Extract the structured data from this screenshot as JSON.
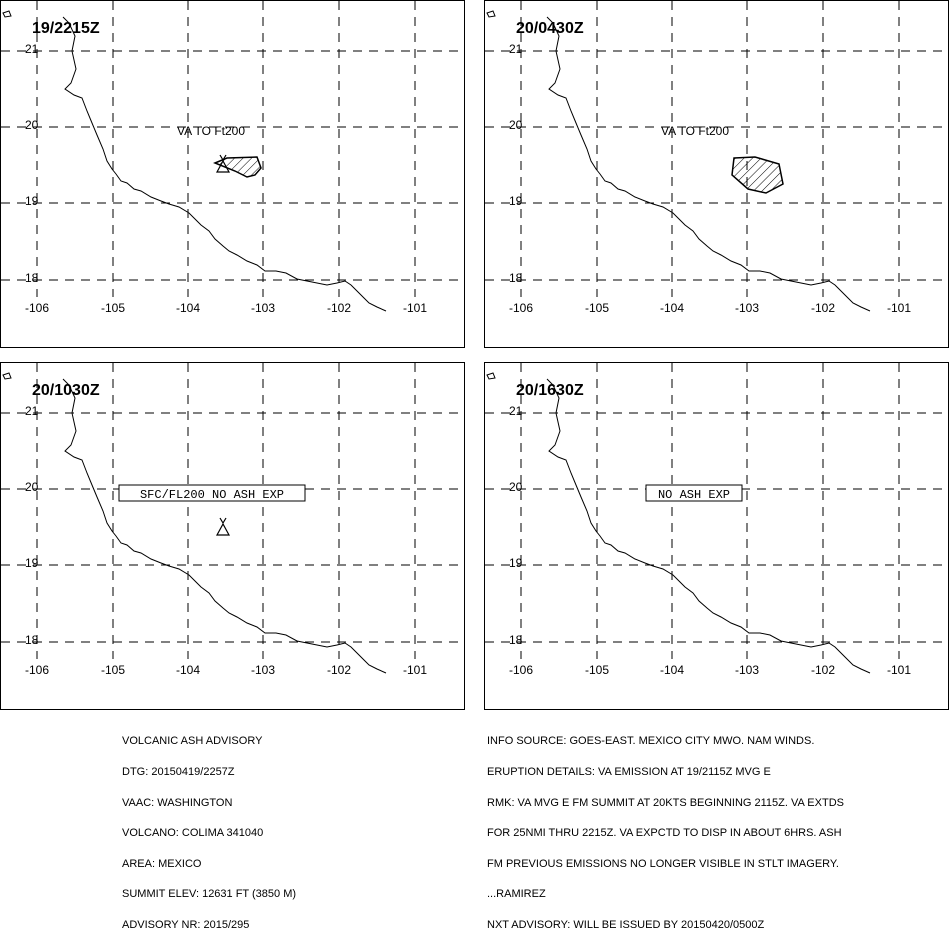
{
  "map": {
    "lon_ticks": [
      "-106",
      "-105",
      "-104",
      "-103",
      "-102",
      "-101"
    ],
    "lat_ticks": [
      "21",
      "20",
      "19",
      "18"
    ]
  },
  "panels": [
    {
      "time": "19/2215Z",
      "label": "VA TO Ft200",
      "label_boxed": false,
      "ash": "small"
    },
    {
      "time": "20/0430Z",
      "label": "VA TO Ft200",
      "label_boxed": false,
      "ash": "large"
    },
    {
      "time": "20/1030Z",
      "label": "SFC/FL200 NO ASH EXP",
      "label_boxed": true,
      "ash": "none"
    },
    {
      "time": "20/1630Z",
      "label": "NO ASH EXP",
      "label_boxed": true,
      "ash": "none"
    }
  ],
  "advisory_left": [
    "VOLCANIC ASH ADVISORY",
    "DTG: 20150419/2257Z",
    "VAAC: WASHINGTON",
    "VOLCANO: COLIMA 341040",
    "AREA: MEXICO",
    "SUMMIT ELEV: 12631 FT (3850 M)",
    "ADVISORY NR: 2015/295"
  ],
  "advisory_right": [
    "INFO SOURCE: GOES-EAST. MEXICO CITY MWO. NAM WINDS.",
    "ERUPTION DETAILS: VA EMISSION AT 19/2115Z MVG E",
    "RMK: VA MVG E FM SUMMIT AT 20KTS BEGINNING 2115Z. VA EXTDS",
    "FOR 25NMI THRU 2215Z. VA EXPCTD TO DISP IN ABOUT 6HRS. ASH",
    "FM PREVIOUS EMISSIONS NO LONGER VISIBLE IN STLT IMAGERY.",
    "...RAMIREZ",
    "NXT ADVISORY: WILL BE ISSUED BY 20150420/0500Z"
  ]
}
